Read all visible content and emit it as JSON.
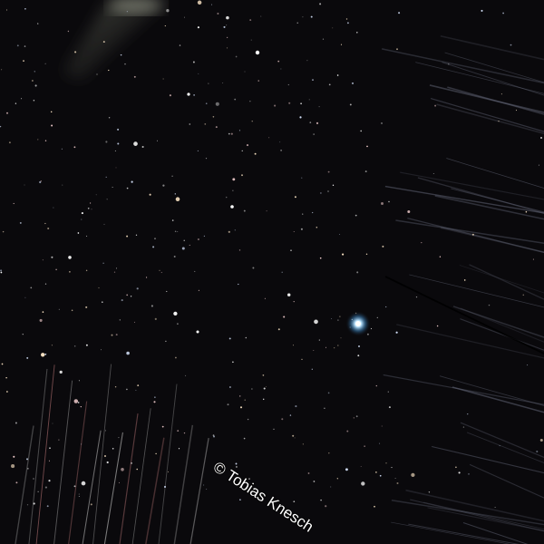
{
  "watermark": "© Tobias Knesch"
}
